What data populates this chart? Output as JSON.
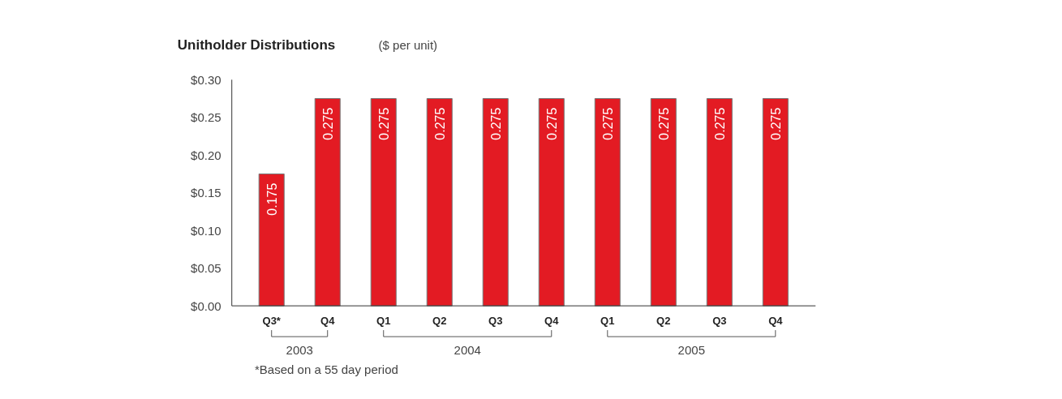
{
  "chart_data": {
    "type": "bar",
    "title": "Unitholder Distributions",
    "subtitle": "($ per unit)",
    "categories": [
      "Q3*",
      "Q4",
      "Q1",
      "Q2",
      "Q3",
      "Q4",
      "Q1",
      "Q2",
      "Q3",
      "Q4"
    ],
    "values": [
      0.175,
      0.275,
      0.275,
      0.275,
      0.275,
      0.275,
      0.275,
      0.275,
      0.275,
      0.275
    ],
    "color": "#e31b23",
    "data_labels": true,
    "ylim": [
      0,
      0.3
    ],
    "yticks": [
      {
        "value": 0,
        "label": "$0.00"
      },
      {
        "value": 0.05,
        "label": "$0.05"
      },
      {
        "value": 0.1,
        "label": "$0.10"
      },
      {
        "value": 0.15,
        "label": "$0.15"
      },
      {
        "value": 0.2,
        "label": "$0.20"
      },
      {
        "value": 0.25,
        "label": "$0.25"
      },
      {
        "value": 0.3,
        "label": "$0.30"
      }
    ],
    "grid": false,
    "annotations": [
      "2003",
      "2004",
      "2005",
      "*Based on a 55 day period"
    ]
  }
}
